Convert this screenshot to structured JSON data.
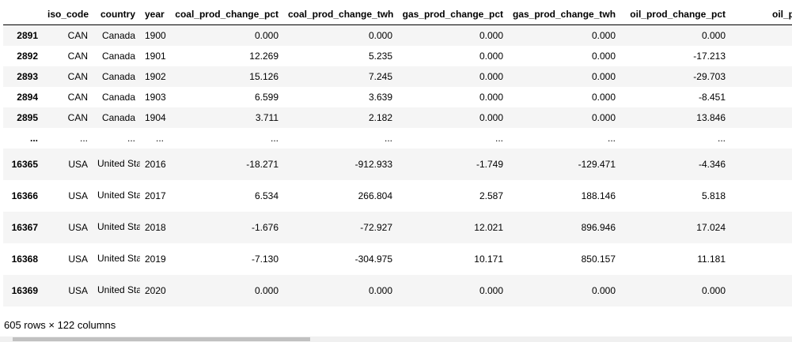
{
  "table": {
    "columns": [
      "",
      "iso_code",
      "country",
      "year",
      "coal_prod_change_pct",
      "coal_prod_change_twh",
      "gas_prod_change_pct",
      "gas_prod_change_twh",
      "oil_prod_change_pct",
      "oil_prod_chan"
    ],
    "rows": [
      [
        "2891",
        "CAN",
        "Canada",
        "1900",
        "0.000",
        "0.000",
        "0.000",
        "0.000",
        "0.000",
        ""
      ],
      [
        "2892",
        "CAN",
        "Canada",
        "1901",
        "12.269",
        "5.235",
        "0.000",
        "0.000",
        "-17.213",
        ""
      ],
      [
        "2893",
        "CAN",
        "Canada",
        "1902",
        "15.126",
        "7.245",
        "0.000",
        "0.000",
        "-29.703",
        ""
      ],
      [
        "2894",
        "CAN",
        "Canada",
        "1903",
        "6.599",
        "3.639",
        "0.000",
        "0.000",
        "-8.451",
        ""
      ],
      [
        "2895",
        "CAN",
        "Canada",
        "1904",
        "3.711",
        "2.182",
        "0.000",
        "0.000",
        "13.846",
        ""
      ],
      [
        "...",
        "...",
        "...",
        "...",
        "...",
        "...",
        "...",
        "...",
        "...",
        ""
      ],
      [
        "16365",
        "USA",
        "United States",
        "2016",
        "-18.271",
        "-912.933",
        "-1.749",
        "-129.471",
        "-4.346",
        ""
      ],
      [
        "16366",
        "USA",
        "United States",
        "2017",
        "6.534",
        "266.804",
        "2.587",
        "188.146",
        "5.818",
        ""
      ],
      [
        "16367",
        "USA",
        "United States",
        "2018",
        "-1.676",
        "-72.927",
        "12.021",
        "896.946",
        "17.024",
        ""
      ],
      [
        "16368",
        "USA",
        "United States",
        "2019",
        "-7.130",
        "-304.975",
        "10.171",
        "850.157",
        "11.181",
        ""
      ],
      [
        "16369",
        "USA",
        "United States",
        "2020",
        "0.000",
        "0.000",
        "0.000",
        "0.000",
        "0.000",
        ""
      ]
    ]
  },
  "footer": {
    "shape_text": "605 rows × 122 columns"
  }
}
